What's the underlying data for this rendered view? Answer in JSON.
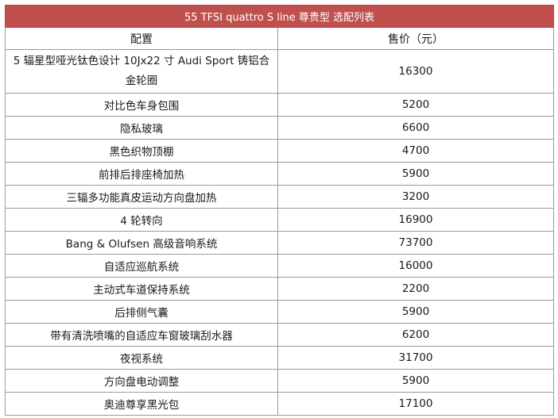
{
  "table": {
    "title": "55 TFSI quattro S line 尊贵型 选配列表",
    "headers": {
      "config": "配置",
      "price": "售价（元）"
    },
    "rows": [
      {
        "config": "5 辐星型哑光钛色设计 10Jx22 寸 Audi Sport 铸铝合金轮圈",
        "price": "16300"
      },
      {
        "config": "对比色车身包围",
        "price": "5200"
      },
      {
        "config": "隐私玻璃",
        "price": "6600"
      },
      {
        "config": "黑色织物顶棚",
        "price": "4700"
      },
      {
        "config": "前排后排座椅加热",
        "price": "5900"
      },
      {
        "config": "三辐多功能真皮运动方向盘加热",
        "price": "3200"
      },
      {
        "config": "4 轮转向",
        "price": "16900"
      },
      {
        "config": "Bang & Olufsen 高级音响系统",
        "price": "73700"
      },
      {
        "config": "自适应巡航系统",
        "price": "16000"
      },
      {
        "config": "主动式车道保持系统",
        "price": "2200"
      },
      {
        "config": "后排侧气囊",
        "price": "5900"
      },
      {
        "config": "带有清洗喷嘴的自适应车窗玻璃刮水器",
        "price": "6200"
      },
      {
        "config": "夜视系统",
        "price": "31700"
      },
      {
        "config": "方向盘电动调整",
        "price": "5900"
      },
      {
        "config": "奥迪尊享黑光包",
        "price": "17100"
      }
    ]
  }
}
